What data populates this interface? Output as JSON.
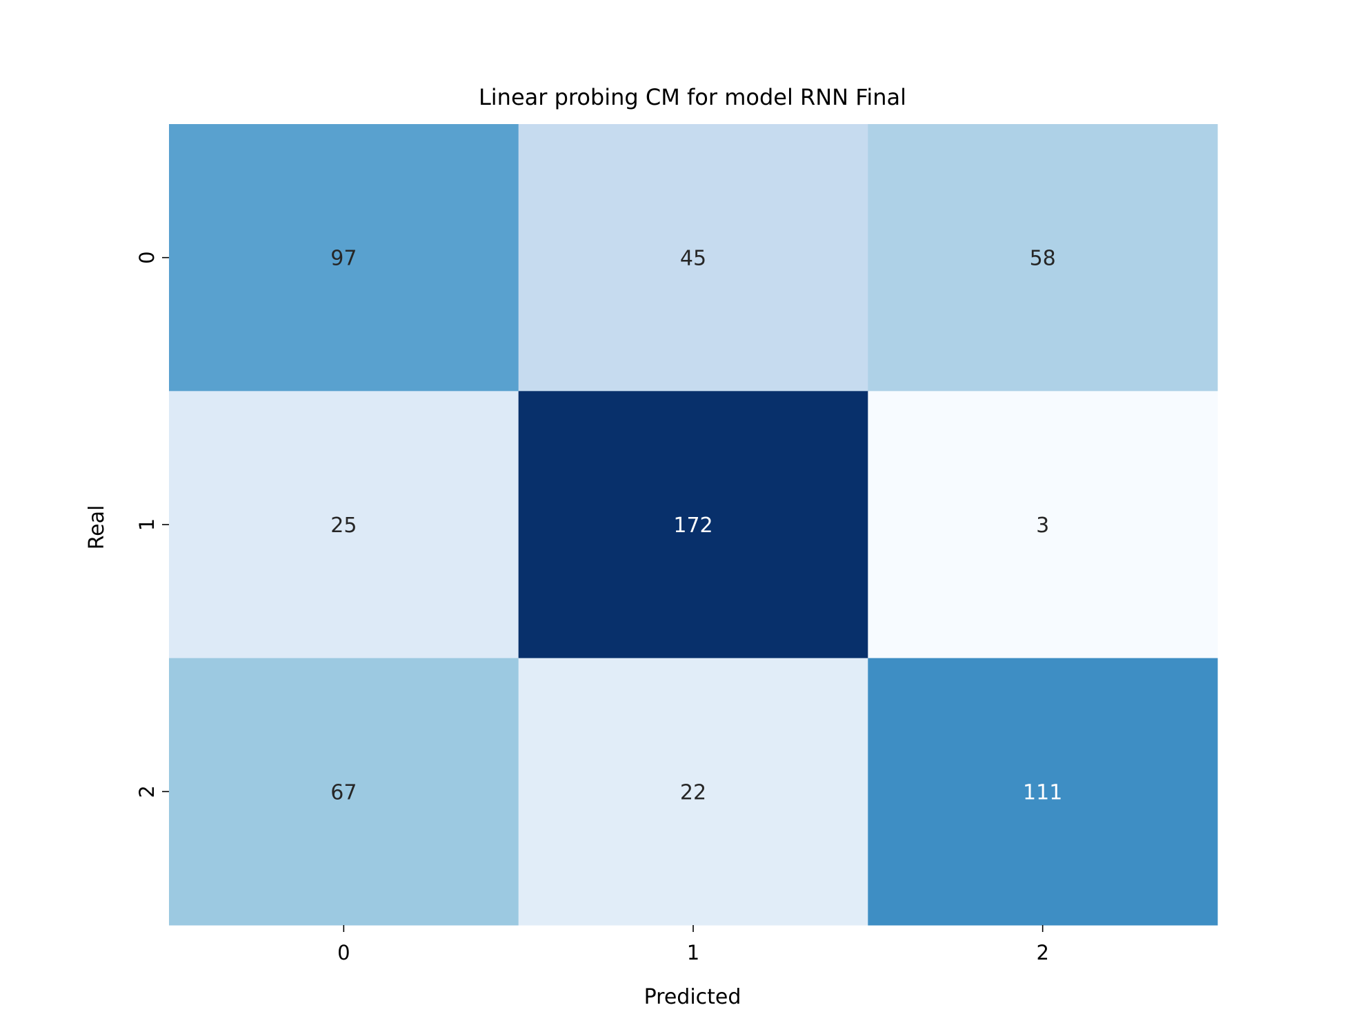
{
  "chart_data": {
    "type": "heatmap",
    "title": "Linear probing CM for model RNN Final",
    "xlabel": "Predicted",
    "ylabel": "Real",
    "x_categories": [
      "0",
      "1",
      "2"
    ],
    "y_categories": [
      "0",
      "1",
      "2"
    ],
    "matrix": [
      [
        97,
        45,
        58
      ],
      [
        25,
        172,
        3
      ],
      [
        67,
        22,
        111
      ]
    ],
    "colormap": "Blues",
    "value_range": [
      3,
      172
    ],
    "colorbar": false,
    "grid": false
  }
}
